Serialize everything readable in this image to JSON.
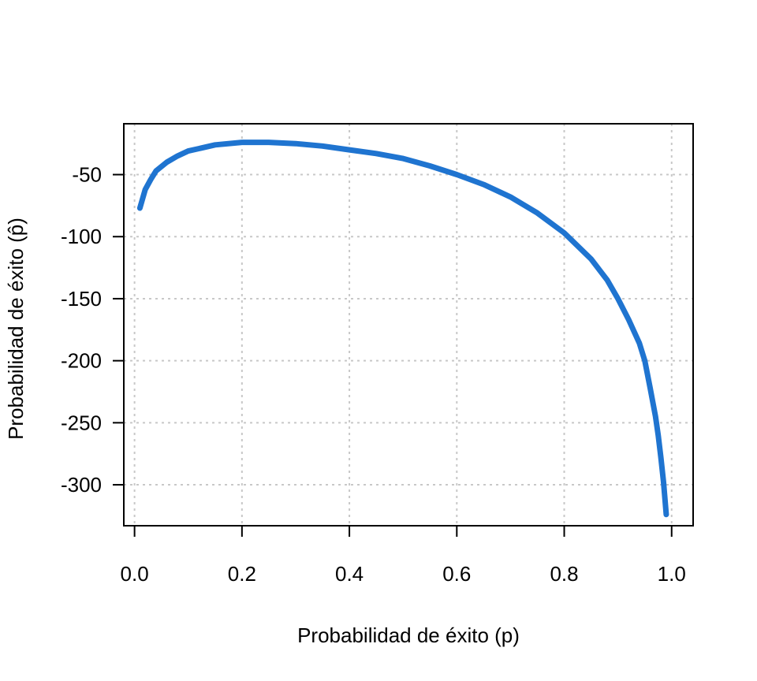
{
  "chart_data": {
    "type": "line",
    "title": "",
    "xlabel": "Probabilidad de éxito (p)",
    "ylabel": "Probabilidad de éxito (p̂)",
    "xlim": [
      -0.02,
      1.04
    ],
    "ylim": [
      -333,
      -9
    ],
    "grid": true,
    "x_ticks": [
      0.0,
      0.2,
      0.4,
      0.6,
      0.8,
      1.0
    ],
    "x_tick_labels": [
      "0.0",
      "0.2",
      "0.4",
      "0.6",
      "0.8",
      "1.0"
    ],
    "y_ticks": [
      -50,
      -100,
      -150,
      -200,
      -250,
      -300
    ],
    "y_tick_labels": [
      "-50",
      "-100",
      "-150",
      "-200",
      "-250",
      "-300"
    ],
    "colors": {
      "line": "#1f74d0",
      "grid": "#c8c8c8",
      "frame": "#000000"
    },
    "series": [
      {
        "x": [
          0.01,
          0.02,
          0.03,
          0.04,
          0.06,
          0.08,
          0.1,
          0.12,
          0.15,
          0.2,
          0.25,
          0.3,
          0.35,
          0.4,
          0.45,
          0.5,
          0.55,
          0.6,
          0.65,
          0.7,
          0.75,
          0.8,
          0.85,
          0.88,
          0.9,
          0.92,
          0.94,
          0.95,
          0.96,
          0.97,
          0.975,
          0.98,
          0.985,
          0.99
        ],
        "y": [
          -77,
          -62,
          -54,
          -47,
          -40,
          -35,
          -31,
          -29,
          -26,
          -24,
          -24,
          -25,
          -27,
          -30,
          -33,
          -37,
          -43,
          -50,
          -58,
          -68,
          -81,
          -97,
          -118,
          -135,
          -150,
          -167,
          -186,
          -200,
          -222,
          -245,
          -260,
          -278,
          -298,
          -324
        ]
      }
    ]
  }
}
